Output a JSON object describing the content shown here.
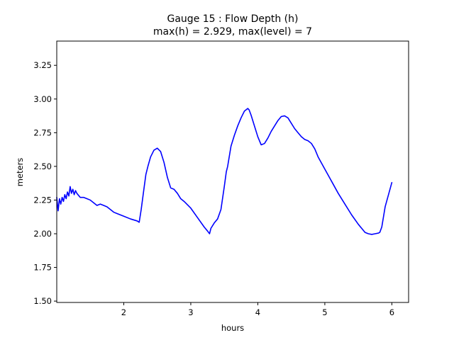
{
  "chart_data": {
    "type": "line",
    "title_line1": "Gauge 15 : Flow Depth (h)",
    "title_line2": "max(h) =   2.929,    max(level) = 7",
    "xlabel": "hours",
    "ylabel": "meters",
    "xlim": [
      1.0,
      6.25
    ],
    "ylim": [
      1.49,
      3.43
    ],
    "x_ticks": [
      2,
      3,
      4,
      5,
      6
    ],
    "x_tick_labels": [
      "2",
      "3",
      "4",
      "5",
      "6"
    ],
    "y_ticks": [
      1.5,
      1.75,
      2.0,
      2.25,
      2.5,
      2.75,
      3.0,
      3.25
    ],
    "y_tick_labels": [
      "1.50",
      "1.75",
      "2.00",
      "2.25",
      "2.50",
      "2.75",
      "3.00",
      "3.25"
    ],
    "grid": false,
    "series": [
      {
        "color": "#0000ff",
        "x": [
          1.0,
          1.02,
          1.04,
          1.06,
          1.08,
          1.1,
          1.12,
          1.14,
          1.16,
          1.18,
          1.2,
          1.22,
          1.24,
          1.26,
          1.28,
          1.3,
          1.35,
          1.4,
          1.45,
          1.5,
          1.55,
          1.6,
          1.65,
          1.7,
          1.75,
          1.8,
          1.85,
          1.9,
          2.0,
          2.1,
          2.2,
          2.23,
          2.26,
          2.3,
          2.33,
          2.36,
          2.4,
          2.45,
          2.5,
          2.55,
          2.6,
          2.65,
          2.7,
          2.75,
          2.8,
          2.85,
          2.9,
          3.0,
          3.1,
          3.2,
          3.25,
          3.28,
          3.3,
          3.35,
          3.4,
          3.45,
          3.5,
          3.53,
          3.55,
          3.6,
          3.65,
          3.7,
          3.75,
          3.8,
          3.85,
          3.87,
          3.9,
          3.95,
          4.0,
          4.05,
          4.1,
          4.15,
          4.2,
          4.25,
          4.3,
          4.35,
          4.4,
          4.45,
          4.5,
          4.55,
          4.6,
          4.65,
          4.7,
          4.75,
          4.8,
          4.85,
          4.9,
          5.0,
          5.1,
          5.2,
          5.3,
          5.4,
          5.5,
          5.55,
          5.6,
          5.65,
          5.7,
          5.75,
          5.8,
          5.82,
          5.85,
          5.9,
          5.95,
          6.0
        ],
        "y": [
          2.27,
          2.17,
          2.26,
          2.22,
          2.27,
          2.24,
          2.29,
          2.26,
          2.31,
          2.28,
          2.35,
          2.3,
          2.33,
          2.29,
          2.32,
          2.3,
          2.27,
          2.27,
          2.26,
          2.25,
          2.23,
          2.21,
          2.22,
          2.21,
          2.2,
          2.18,
          2.16,
          2.15,
          2.13,
          2.11,
          2.095,
          2.085,
          2.18,
          2.33,
          2.44,
          2.5,
          2.57,
          2.62,
          2.635,
          2.61,
          2.53,
          2.42,
          2.34,
          2.33,
          2.3,
          2.26,
          2.24,
          2.19,
          2.12,
          2.05,
          2.02,
          2.0,
          2.04,
          2.08,
          2.11,
          2.18,
          2.35,
          2.46,
          2.5,
          2.65,
          2.73,
          2.8,
          2.86,
          2.91,
          2.93,
          2.92,
          2.88,
          2.8,
          2.72,
          2.66,
          2.67,
          2.71,
          2.76,
          2.8,
          2.84,
          2.87,
          2.875,
          2.86,
          2.82,
          2.78,
          2.75,
          2.72,
          2.7,
          2.69,
          2.67,
          2.63,
          2.57,
          2.48,
          2.39,
          2.3,
          2.22,
          2.14,
          2.07,
          2.04,
          2.01,
          2.0,
          1.995,
          2.0,
          2.005,
          2.01,
          2.05,
          2.2,
          2.29,
          2.38
        ]
      }
    ]
  }
}
